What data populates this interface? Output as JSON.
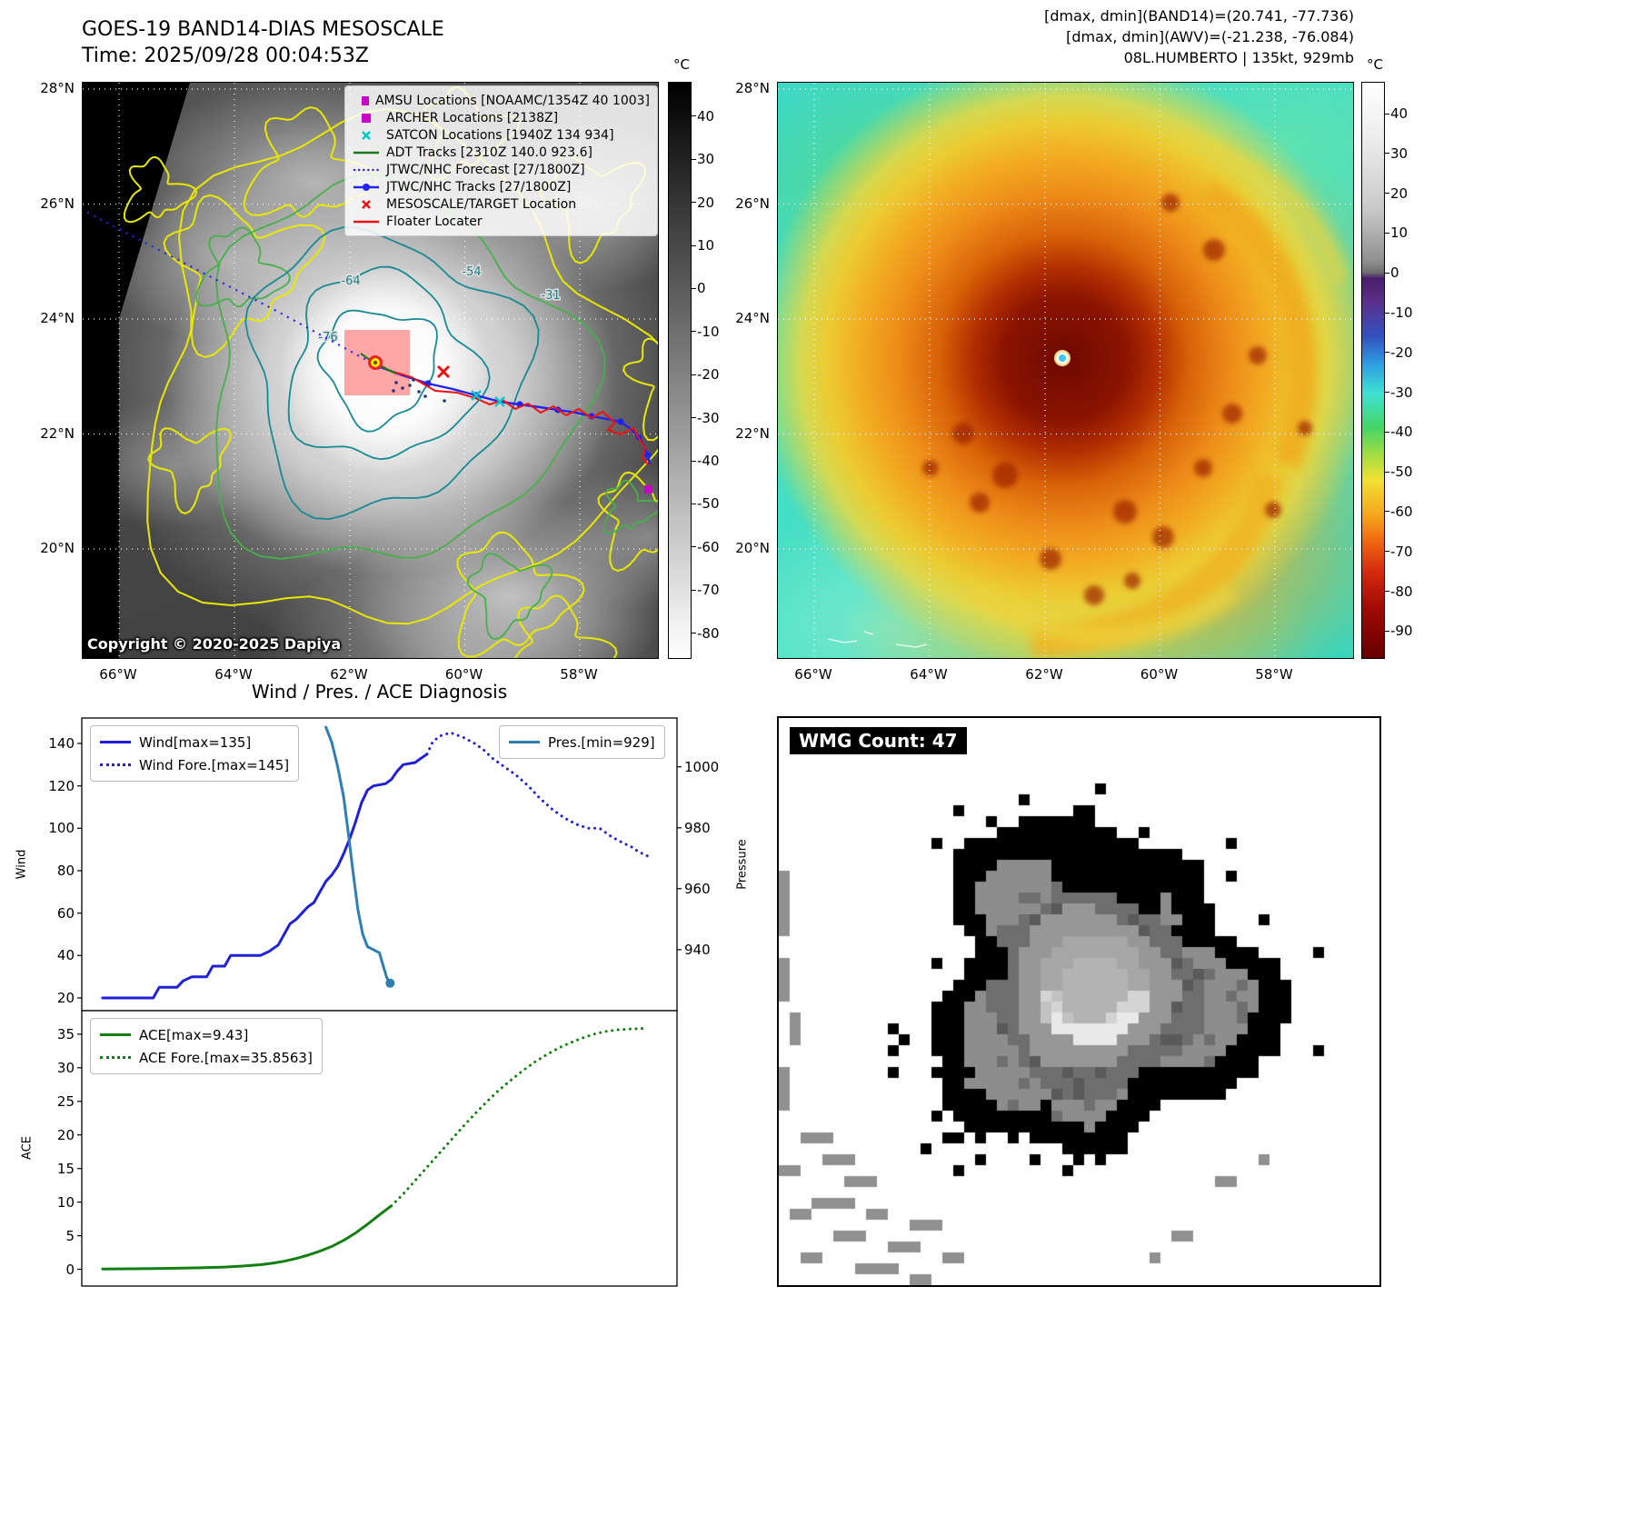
{
  "left_panel": {
    "title": "GOES-19 BAND14-DIAS MESOSCALE",
    "subtitle": "Time: 2025/09/28 00:04:53Z",
    "copyright": "Copyright © 2020-2025 Dapiya",
    "legend": [
      {
        "label": "AMSU Locations [NOAAMC/1354Z 40 1003]",
        "marker": "square",
        "color": "#c800c8"
      },
      {
        "label": "ARCHER Locations [2138Z]",
        "marker": "square",
        "color": "#c800c8"
      },
      {
        "label": "SATCON Locations [1940Z 134 934]",
        "marker": "x",
        "color": "#00c8c8"
      },
      {
        "label": "ADT Tracks [2310Z 140.0 923.6]",
        "marker": "line",
        "color": "#1a7a1a"
      },
      {
        "label": "JTWC/NHC Forecast [27/1800Z]",
        "marker": "dotted",
        "color": "#2222ee"
      },
      {
        "label": "JTWC/NHC Tracks [27/1800Z]",
        "marker": "line-dot",
        "color": "#2222ee"
      },
      {
        "label": "MESOSCALE/TARGET Location",
        "marker": "x",
        "color": "#ee1111"
      },
      {
        "label": "Floater Locater",
        "marker": "line",
        "color": "#ee1111"
      }
    ],
    "lat_ticks": [
      "28°N",
      "26°N",
      "24°N",
      "22°N",
      "20°N"
    ],
    "lon_ticks": [
      "66°W",
      "64°W",
      "62°W",
      "60°W",
      "58°W"
    ],
    "colorbar": {
      "unit": "°C",
      "ticks": [
        40,
        30,
        20,
        10,
        0,
        -10,
        -20,
        -30,
        -40,
        -50,
        -60,
        -70,
        -80
      ]
    },
    "contour_labels": [
      "-64",
      "-54",
      "-76",
      "-31"
    ]
  },
  "right_panel": {
    "header_line1": "[dmax, dmin](BAND14)=(20.741, -77.736)",
    "header_line2": "[dmax, dmin](AWV)=(-21.238, -76.084)",
    "header_line3": "08L.HUMBERTO | 135kt, 929mb",
    "lat_ticks": [
      "28°N",
      "26°N",
      "24°N",
      "22°N",
      "20°N"
    ],
    "lon_ticks": [
      "66°W",
      "64°W",
      "62°W",
      "60°W",
      "58°W"
    ],
    "colorbar": {
      "unit": "°C",
      "ticks": [
        40,
        30,
        20,
        10,
        0,
        -10,
        -20,
        -30,
        -40,
        -50,
        -60,
        -70,
        -80,
        -90
      ]
    }
  },
  "charts": {
    "title": "Wind / Pres. / ACE Diagnosis"
  },
  "wmg": {
    "label": "WMG Count: 47"
  },
  "chart_data": [
    {
      "type": "line",
      "panel": "wind-pressure",
      "title": "Wind / Pres. / ACE Diagnosis",
      "ylabel_left": "Wind",
      "ylabel_right": "Pressure",
      "yticks_left": [
        20,
        40,
        60,
        80,
        100,
        120,
        140
      ],
      "yticks_right": [
        940,
        960,
        980,
        1000
      ],
      "ylim_left": [
        14,
        152
      ],
      "ylim_right": [
        920,
        1016
      ],
      "xlim": [
        0,
        100
      ],
      "legend_positions": {
        "wind": "upper left",
        "pressure": "upper right"
      },
      "series": [
        {
          "name": "Wind[max=135]",
          "color": "#2020d8",
          "style": "solid",
          "axis": "left",
          "points": [
            [
              3.5,
              20
            ],
            [
              12,
              20
            ],
            [
              13,
              25
            ],
            [
              16,
              25
            ],
            [
              17,
              28
            ],
            [
              18.5,
              30
            ],
            [
              21,
              30
            ],
            [
              22,
              35
            ],
            [
              24,
              35
            ],
            [
              25,
              40
            ],
            [
              30,
              40
            ],
            [
              31.5,
              42
            ],
            [
              33,
              45
            ],
            [
              34,
              50
            ],
            [
              35,
              55
            ],
            [
              36,
              57
            ],
            [
              37,
              60
            ],
            [
              38,
              63
            ],
            [
              39,
              65
            ],
            [
              40,
              70
            ],
            [
              41,
              75
            ],
            [
              42,
              78
            ],
            [
              43,
              82
            ],
            [
              44,
              88
            ],
            [
              45,
              95
            ],
            [
              46,
              103
            ],
            [
              47,
              112
            ],
            [
              48,
              118
            ],
            [
              49,
              120
            ],
            [
              51,
              121
            ],
            [
              52,
              123
            ],
            [
              53,
              127
            ],
            [
              54,
              130
            ],
            [
              56,
              131
            ],
            [
              57,
              133
            ],
            [
              58,
              135
            ]
          ]
        },
        {
          "name": "Wind Fore.[max=145]",
          "color": "#2020d8",
          "style": "dotted",
          "axis": "left",
          "points": [
            [
              58,
              135
            ],
            [
              59,
              141
            ],
            [
              60.5,
              144
            ],
            [
              62,
              145
            ],
            [
              64,
              143
            ],
            [
              66,
              140
            ],
            [
              67.5,
              137
            ],
            [
              69,
              133
            ],
            [
              71,
              129
            ],
            [
              73,
              125
            ],
            [
              75,
              120
            ],
            [
              77,
              114
            ],
            [
              79,
              109
            ],
            [
              81,
              105
            ],
            [
              83,
              102
            ],
            [
              85,
              100
            ],
            [
              87,
              100
            ],
            [
              89,
              96
            ],
            [
              91,
              93
            ],
            [
              92.5,
              91
            ],
            [
              93.5,
              89
            ],
            [
              95,
              87
            ]
          ]
        },
        {
          "name": "Pres.[min=929]",
          "color": "#2e7fb5",
          "style": "solid",
          "axis": "right",
          "end_marker": true,
          "points": [
            [
              41,
              1013
            ],
            [
              42,
              1008
            ],
            [
              43,
              1000
            ],
            [
              44,
              990
            ],
            [
              44.8,
              978
            ],
            [
              45.6,
              965
            ],
            [
              46.4,
              953
            ],
            [
              47.2,
              945
            ],
            [
              48,
              941
            ],
            [
              49,
              940
            ],
            [
              50,
              939
            ],
            [
              50.6,
              935
            ],
            [
              51.2,
              931
            ],
            [
              51.8,
              929
            ]
          ]
        }
      ]
    },
    {
      "type": "line",
      "panel": "ace",
      "ylabel_left": "ACE",
      "yticks_left": [
        0,
        5,
        10,
        15,
        20,
        25,
        30,
        35
      ],
      "ylim_left": [
        -2.5,
        38.5
      ],
      "xlim": [
        0,
        100
      ],
      "series": [
        {
          "name": "ACE[max=9.43]",
          "color": "#118011",
          "style": "solid",
          "axis": "left",
          "points": [
            [
              3.5,
              0.05
            ],
            [
              8,
              0.07
            ],
            [
              12,
              0.1
            ],
            [
              16,
              0.15
            ],
            [
              20,
              0.22
            ],
            [
              24,
              0.33
            ],
            [
              27,
              0.48
            ],
            [
              30,
              0.68
            ],
            [
              32,
              0.9
            ],
            [
              34,
              1.2
            ],
            [
              36,
              1.6
            ],
            [
              38,
              2.1
            ],
            [
              40,
              2.7
            ],
            [
              42,
              3.4
            ],
            [
              44,
              4.3
            ],
            [
              46,
              5.4
            ],
            [
              48,
              6.7
            ],
            [
              50,
              8.1
            ],
            [
              52,
              9.43
            ]
          ]
        },
        {
          "name": "ACE Fore.[max=35.8563]",
          "color": "#118011",
          "style": "dotted",
          "axis": "left",
          "points": [
            [
              52,
              9.43
            ],
            [
              54,
              11.2
            ],
            [
              56,
              13.2
            ],
            [
              58,
              15.2
            ],
            [
              60,
              17.2
            ],
            [
              62,
              19.2
            ],
            [
              64,
              21.2
            ],
            [
              66,
              23.1
            ],
            [
              68,
              24.9
            ],
            [
              70,
              26.6
            ],
            [
              72,
              28.1
            ],
            [
              74,
              29.5
            ],
            [
              76,
              30.8
            ],
            [
              78,
              31.9
            ],
            [
              80,
              32.9
            ],
            [
              82,
              33.7
            ],
            [
              84,
              34.4
            ],
            [
              86,
              35.0
            ],
            [
              88,
              35.4
            ],
            [
              90,
              35.65
            ],
            [
              92.5,
              35.8
            ],
            [
              95,
              35.86
            ]
          ]
        }
      ]
    }
  ]
}
